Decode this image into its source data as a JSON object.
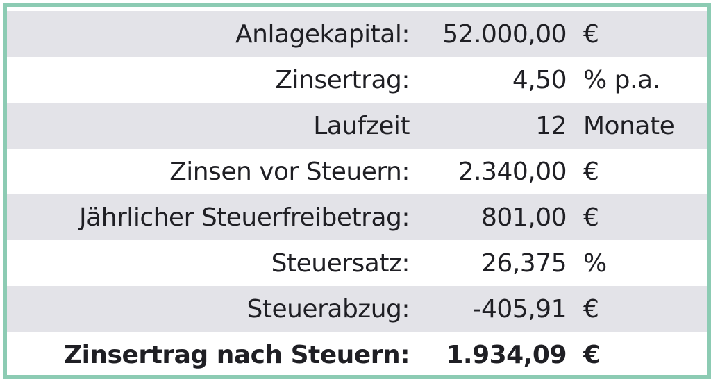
{
  "accent_colors": {
    "border": "#8ccbb3",
    "row_shade": "#e3e3e8",
    "text": "#1f1f24"
  },
  "rows": [
    {
      "label": "Anlagekapital:",
      "value": "52.000,00",
      "unit": "€"
    },
    {
      "label": "Zinsertrag:",
      "value": "4,50",
      "unit": "% p.a."
    },
    {
      "label": "Laufzeit",
      "value": "12",
      "unit": "Monate"
    },
    {
      "label": "Zinsen vor Steuern:",
      "value": "2.340,00",
      "unit": "€"
    },
    {
      "label": "Jährlicher Steuerfreibetrag:",
      "value": "801,00",
      "unit": "€"
    },
    {
      "label": "Steuersatz:",
      "value": "26,375",
      "unit": "%"
    },
    {
      "label": "Steuerabzug:",
      "value": "-405,91",
      "unit": "€"
    },
    {
      "label": "Zinsertrag nach Steuern:",
      "value": "1.934,09",
      "unit": "€"
    }
  ]
}
